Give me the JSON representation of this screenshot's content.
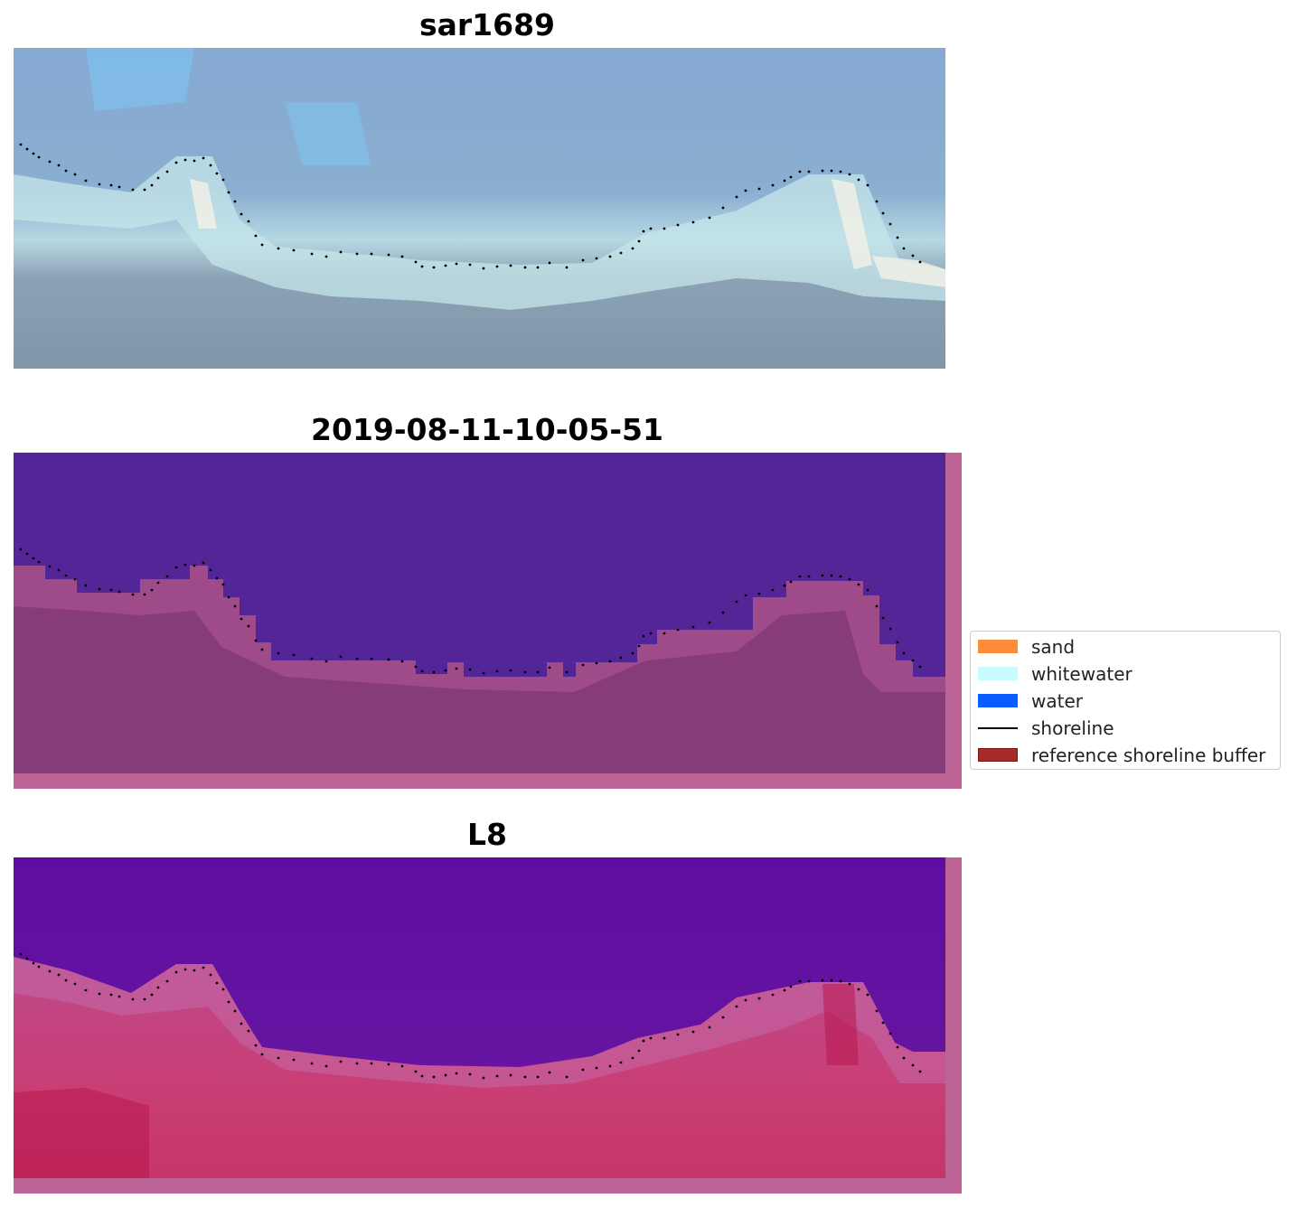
{
  "panels": [
    {
      "title": "sar1689",
      "kind": "rgb"
    },
    {
      "title": "2019-08-11-10-05-51",
      "kind": "classification"
    },
    {
      "title": "L8",
      "kind": "index"
    }
  ],
  "legend": {
    "items": [
      {
        "label": "sand",
        "color": "#ff8c3a",
        "type": "patch"
      },
      {
        "label": "whitewater",
        "color": "#c9fbff",
        "type": "patch"
      },
      {
        "label": "water",
        "color": "#0a5cff",
        "type": "patch"
      },
      {
        "label": "shoreline",
        "color": "#000000",
        "type": "line"
      },
      {
        "label": "reference shoreline buffer",
        "color": "#a52a2a",
        "type": "patch"
      }
    ]
  },
  "colors": {
    "rgb_sky": "#84a6cf",
    "rgb_surf": "#bfe2ea",
    "rgb_land": "#7f96a8",
    "class_water": "#532597",
    "class_buffer": "#bd6496",
    "class_land": "#853c78",
    "index_water": "#6a16a2",
    "index_mid": "#a04aa4",
    "index_land": "#cd4277",
    "shoreline_dots": "#000000"
  }
}
